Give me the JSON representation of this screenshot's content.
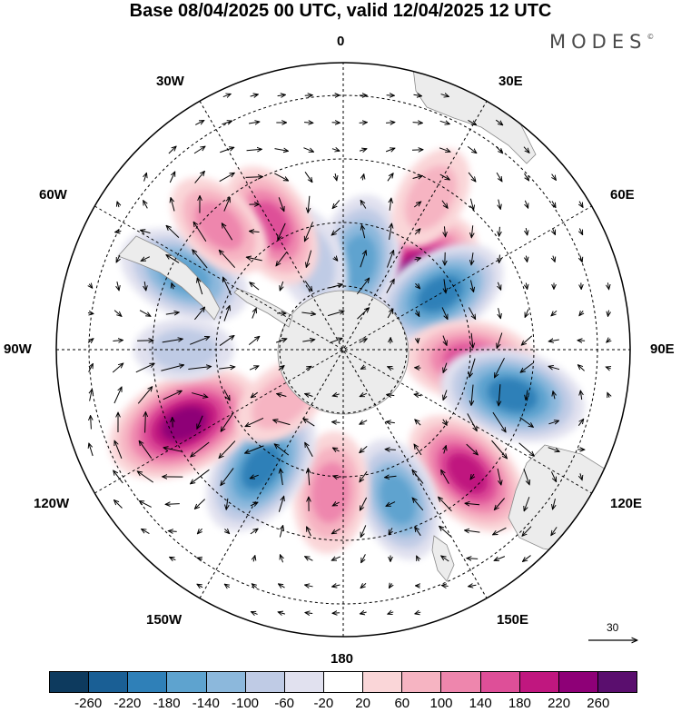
{
  "title": "Base 08/04/2025 00 UTC, valid 12/04/2025 12 UTC",
  "brand": "MODES",
  "brand_mark": "©",
  "longitude_labels": {
    "lon_0": "0",
    "lon_30e": "30E",
    "lon_60e": "60E",
    "lon_90e": "90E",
    "lon_120e": "120E",
    "lon_150e": "150E",
    "lon_180": "180",
    "lon_150w": "150W",
    "lon_120w": "120W",
    "lon_90w": "90W",
    "lon_60w": "60W",
    "lon_30w": "30W"
  },
  "reference_vector": {
    "label": "30",
    "value": 30
  },
  "colorbar": {
    "colors": [
      "#0d3a5e",
      "#1a5f95",
      "#2f80b8",
      "#5ea3cf",
      "#8cb8dc",
      "#bfcbe5",
      "#e1e1ef",
      "#ffffff",
      "#fad6d8",
      "#f6b4c2",
      "#ee86ad",
      "#de4f98",
      "#c0177f",
      "#8e0077",
      "#5a0e6e"
    ],
    "tick_labels": [
      "-260",
      "-220",
      "-180",
      "-140",
      "-100",
      "-60",
      "-20",
      "20",
      "60",
      "100",
      "140",
      "180",
      "220",
      "260"
    ]
  },
  "anomaly_centers": [
    {
      "lon": 45,
      "colat": 30,
      "value": 240
    },
    {
      "lon": 10,
      "colat": 28,
      "value": -150
    },
    {
      "lon": -20,
      "colat": 30,
      "value": -70
    },
    {
      "lon": -30,
      "colat": 45,
      "value": 130
    },
    {
      "lon": 60,
      "colat": 35,
      "value": -160
    },
    {
      "lon": 95,
      "colat": 40,
      "value": 140
    },
    {
      "lon": 105,
      "colat": 55,
      "value": -190
    },
    {
      "lon": 135,
      "colat": 55,
      "value": 170
    },
    {
      "lon": 160,
      "colat": 50,
      "value": -120
    },
    {
      "lon": 185,
      "colat": 45,
      "value": 110
    },
    {
      "lon": -145,
      "colat": 45,
      "value": -180
    },
    {
      "lon": -115,
      "colat": 55,
      "value": 230
    },
    {
      "lon": -65,
      "colat": 55,
      "value": -150
    },
    {
      "lon": -45,
      "colat": 55,
      "value": 90
    },
    {
      "lon": -130,
      "colat": 25,
      "value": 60
    },
    {
      "lon": -90,
      "colat": 50,
      "value": -40
    },
    {
      "lon": 30,
      "colat": 55,
      "value": 60
    }
  ]
}
